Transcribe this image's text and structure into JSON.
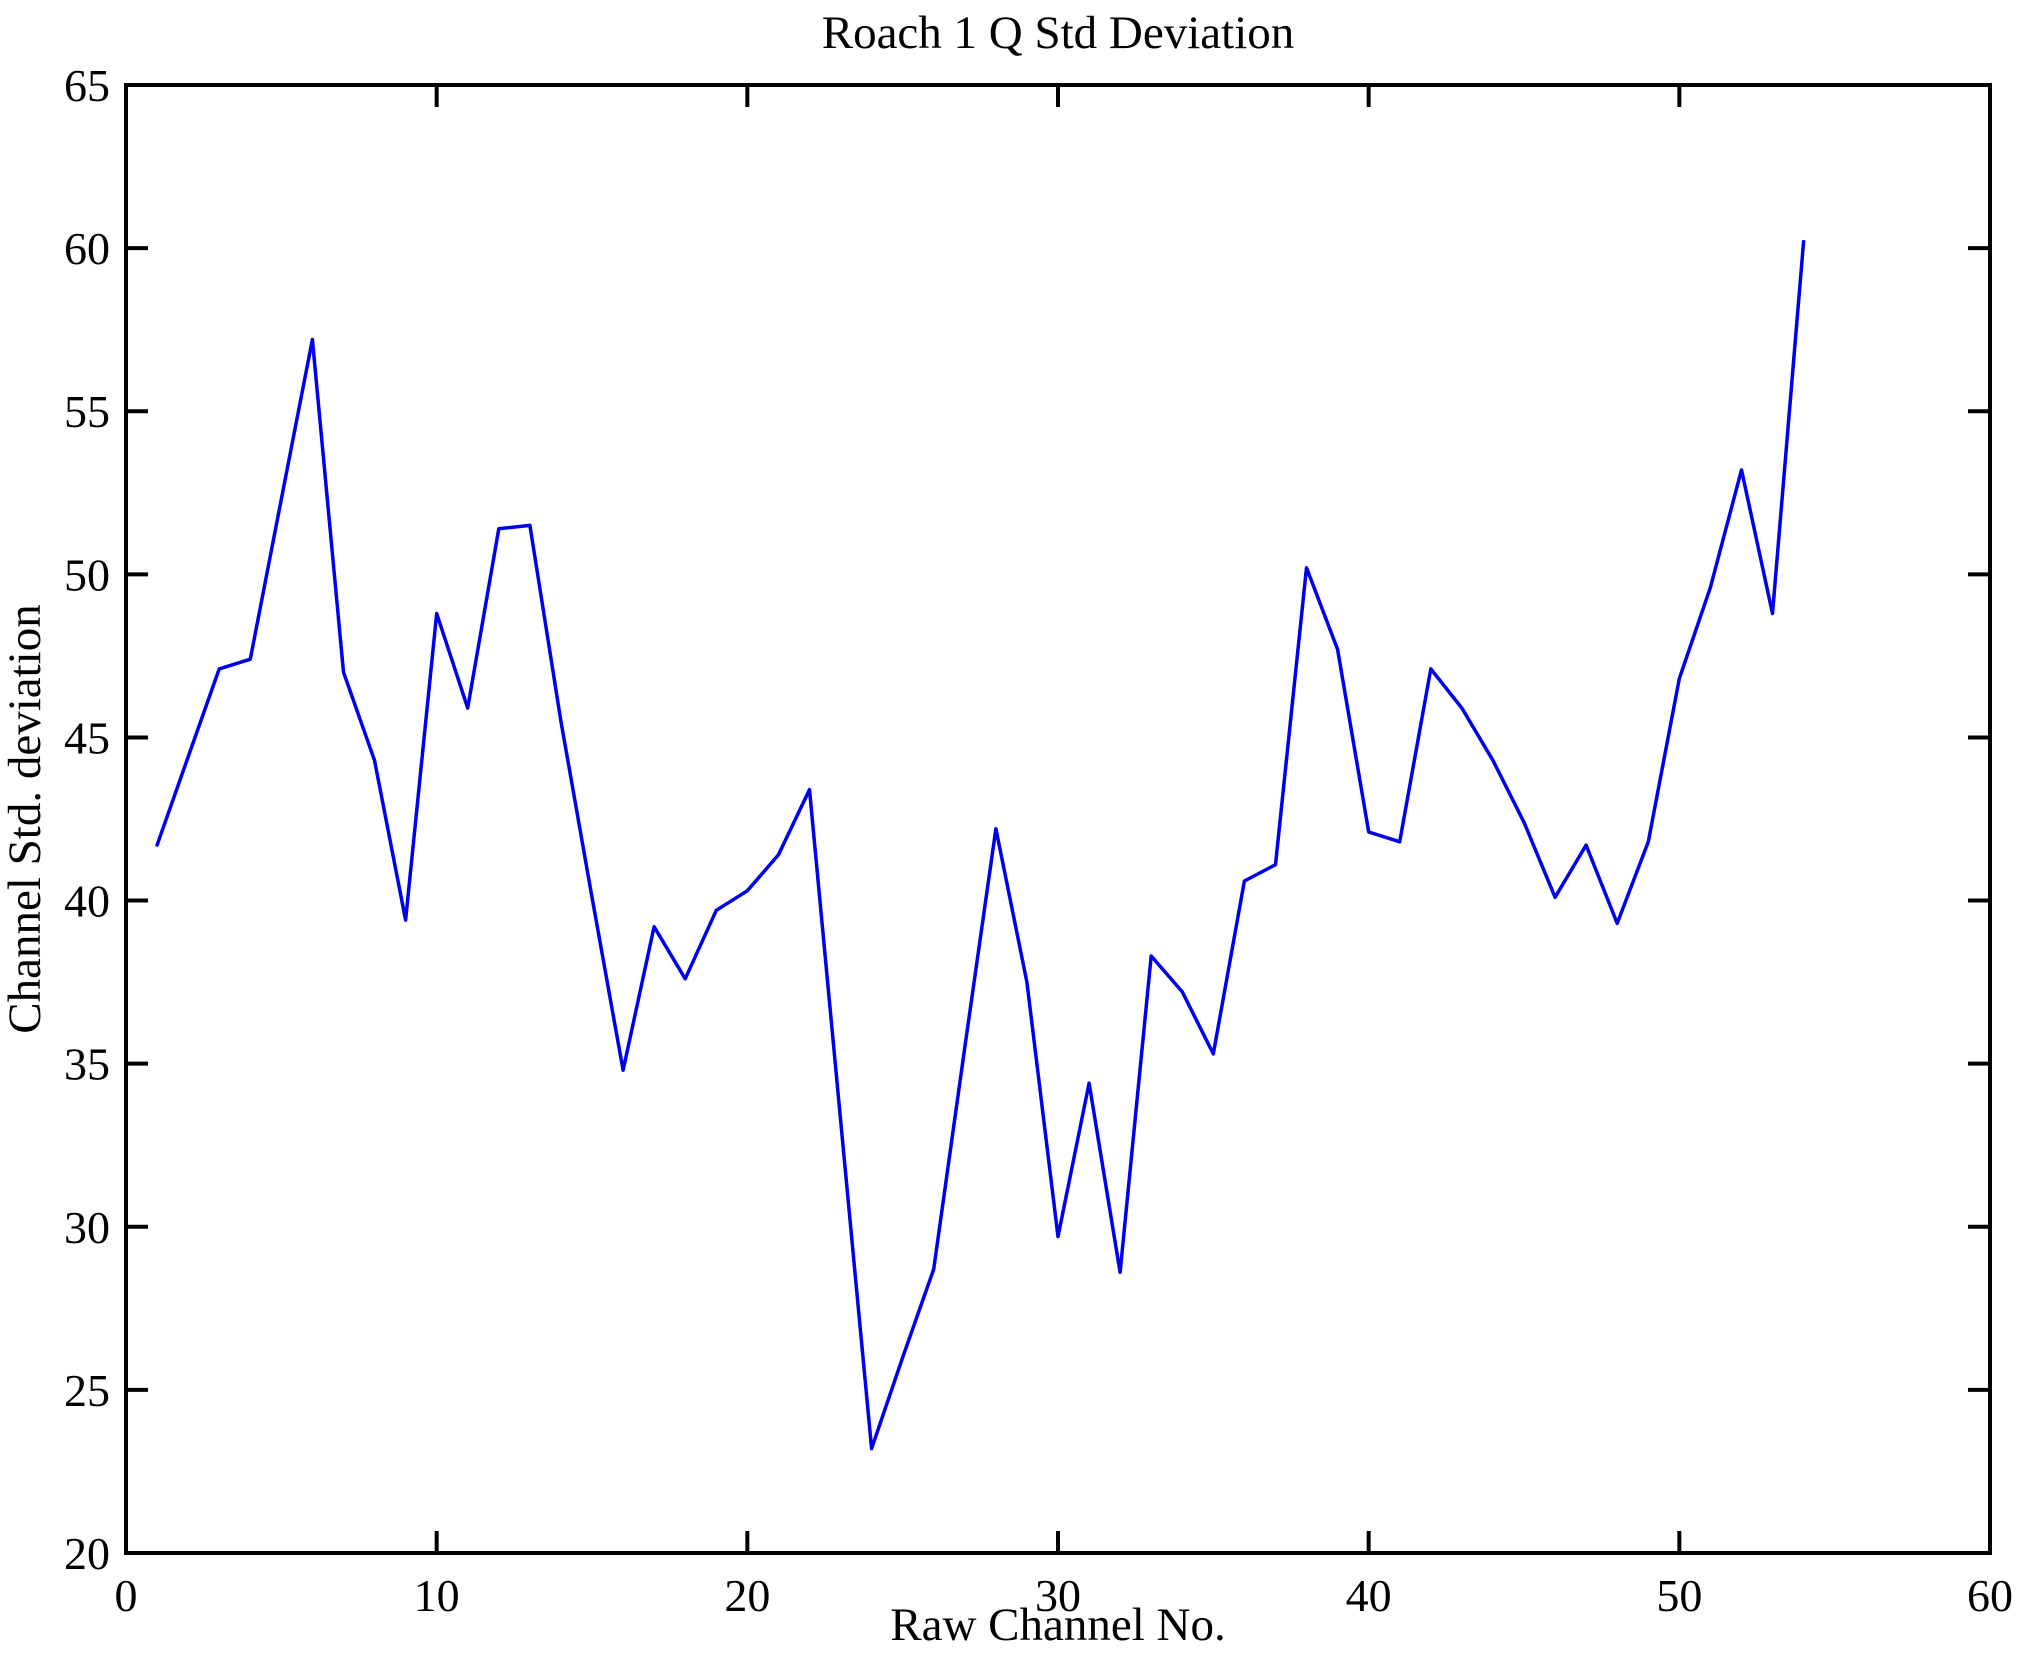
{
  "chart_data": {
    "type": "line",
    "title": "Roach 1 Q Std Deviation",
    "xlabel": "Raw Channel No.",
    "ylabel": "Channel Std. deviation",
    "xlim": [
      0,
      60
    ],
    "ylim": [
      20,
      65
    ],
    "x_ticks": [
      0,
      10,
      20,
      30,
      40,
      50,
      60
    ],
    "y_ticks": [
      20,
      25,
      30,
      35,
      40,
      45,
      50,
      55,
      60,
      65
    ],
    "grid": false,
    "legend_position": "none",
    "line_color": "#0000EE",
    "axis_color": "#000000",
    "background_color": "#FFFFFF",
    "x": [
      1,
      2,
      3,
      4,
      5,
      6,
      7,
      8,
      9,
      10,
      11,
      12,
      13,
      14,
      15,
      16,
      17,
      18,
      19,
      20,
      21,
      22,
      23,
      24,
      25,
      26,
      27,
      28,
      29,
      30,
      31,
      32,
      33,
      34,
      35,
      36,
      37,
      38,
      39,
      40,
      41,
      42,
      43,
      44,
      45,
      46,
      47,
      48,
      49,
      50,
      51,
      52,
      53,
      54
    ],
    "y": [
      41.7,
      44.4,
      47.1,
      47.4,
      52.3,
      57.2,
      47.0,
      44.3,
      39.4,
      48.8,
      45.9,
      51.4,
      51.5,
      45.5,
      40.1,
      34.8,
      39.2,
      37.6,
      39.7,
      40.3,
      41.4,
      43.4,
      33.3,
      23.2,
      26.0,
      28.7,
      35.5,
      42.2,
      37.5,
      29.7,
      34.4,
      28.6,
      38.3,
      37.2,
      35.3,
      40.6,
      41.1,
      50.2,
      47.7,
      42.1,
      41.8,
      47.1,
      45.9,
      44.3,
      42.4,
      40.1,
      41.7,
      39.3,
      41.8,
      46.8,
      49.6,
      53.2,
      48.8,
      60.2
    ]
  }
}
